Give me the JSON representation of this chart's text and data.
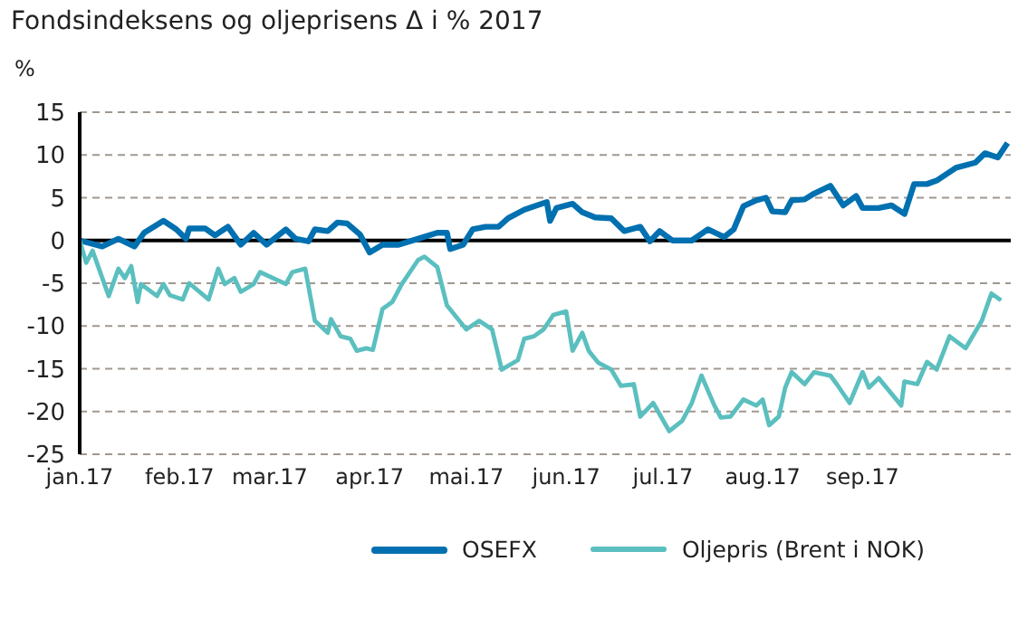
{
  "chart_data": {
    "type": "line",
    "title": "Fondsindeksens og oljeprisens Δ i % 2017",
    "ylabel": "%",
    "xlim": [
      "2017-01-01",
      "2017-10-17"
    ],
    "xticks": [
      {
        "value": "2017-01-01",
        "label": "jan.17"
      },
      {
        "value": "2017-02-01",
        "label": "feb.17"
      },
      {
        "value": "2017-03-01",
        "label": "mar.17"
      },
      {
        "value": "2017-04-01",
        "label": "apr.17"
      },
      {
        "value": "2017-05-01",
        "label": "mai.17"
      },
      {
        "value": "2017-06-01",
        "label": "jun.17"
      },
      {
        "value": "2017-07-01",
        "label": "jul.17"
      },
      {
        "value": "2017-08-01",
        "label": "aug.17"
      },
      {
        "value": "2017-09-01",
        "label": "sep.17"
      }
    ],
    "ylim": [
      -25,
      15
    ],
    "yticks": [
      -25,
      -20,
      -15,
      -10,
      -5,
      0,
      5,
      10,
      15
    ],
    "grid": "y",
    "legend": "bottom",
    "marker": "none",
    "line_style": "solid",
    "ref_lines": [
      {
        "axis": "y",
        "value": 0,
        "color": "#000000"
      }
    ],
    "series": [
      {
        "name": "OSEFX",
        "color": "#0070b0",
        "x": [
          "2017-01-01",
          "2017-01-08",
          "2017-01-13",
          "2017-01-18",
          "2017-01-21",
          "2017-01-27",
          "2017-01-31",
          "2017-02-03",
          "2017-02-04",
          "2017-02-09",
          "2017-02-12",
          "2017-02-16",
          "2017-02-20",
          "2017-02-24",
          "2017-02-28",
          "2017-03-06",
          "2017-03-09",
          "2017-03-13",
          "2017-03-15",
          "2017-03-19",
          "2017-03-22",
          "2017-03-25",
          "2017-03-29",
          "2017-04-01",
          "2017-04-05",
          "2017-04-10",
          "2017-04-16",
          "2017-04-22",
          "2017-04-25",
          "2017-04-26",
          "2017-04-30",
          "2017-05-03",
          "2017-05-07",
          "2017-05-11",
          "2017-05-14",
          "2017-05-19",
          "2017-05-26",
          "2017-05-27",
          "2017-05-29",
          "2017-06-03",
          "2017-06-06",
          "2017-06-10",
          "2017-06-15",
          "2017-06-19",
          "2017-06-24",
          "2017-06-27",
          "2017-06-30",
          "2017-07-04",
          "2017-07-10",
          "2017-07-15",
          "2017-07-20",
          "2017-07-23",
          "2017-07-26",
          "2017-07-30",
          "2017-08-02",
          "2017-08-04",
          "2017-08-08",
          "2017-08-10",
          "2017-08-14",
          "2017-08-17",
          "2017-08-22",
          "2017-08-26",
          "2017-08-30",
          "2017-09-01",
          "2017-09-06",
          "2017-09-10",
          "2017-09-14",
          "2017-09-17",
          "2017-09-21",
          "2017-09-24",
          "2017-09-30",
          "2017-10-06",
          "2017-10-09",
          "2017-10-13",
          "2017-10-16"
        ],
        "values": [
          0,
          -0.7,
          0.2,
          -0.7,
          0.9,
          2.3,
          1.3,
          0.2,
          1.4,
          1.4,
          0.6,
          1.6,
          -0.5,
          0.9,
          -0.5,
          1.3,
          0.2,
          -0.1,
          1.3,
          1.1,
          2.1,
          2.0,
          0.7,
          -1.4,
          -0.5,
          -0.5,
          0.2,
          0.9,
          0.9,
          -1.0,
          -0.5,
          1.3,
          1.6,
          1.6,
          2.6,
          3.6,
          4.5,
          2.3,
          3.8,
          4.3,
          3.3,
          2.7,
          2.6,
          1.1,
          1.6,
          -0.1,
          1.1,
          0,
          0,
          1.3,
          0.4,
          1.3,
          4.0,
          4.7,
          5.0,
          3.4,
          3.3,
          4.7,
          4.8,
          5.5,
          6.4,
          4.1,
          5.2,
          3.8,
          3.8,
          4.1,
          3.1,
          6.6,
          6.6,
          7.0,
          8.5,
          9.1,
          10.2,
          9.7,
          11.4
        ]
      },
      {
        "name": "Oljepris (Brent i NOK)",
        "color": "#5bbfbf",
        "x": [
          "2017-01-01",
          "2017-01-03",
          "2017-01-05",
          "2017-01-10",
          "2017-01-13",
          "2017-01-15",
          "2017-01-17",
          "2017-01-19",
          "2017-01-20",
          "2017-01-25",
          "2017-01-27",
          "2017-01-29",
          "2017-02-02",
          "2017-02-04",
          "2017-02-10",
          "2017-02-13",
          "2017-02-15",
          "2017-02-18",
          "2017-02-20",
          "2017-02-24",
          "2017-02-26",
          "2017-03-06",
          "2017-03-08",
          "2017-03-12",
          "2017-03-15",
          "2017-03-19",
          "2017-03-20",
          "2017-03-23",
          "2017-03-26",
          "2017-03-28",
          "2017-03-31",
          "2017-04-02",
          "2017-04-05",
          "2017-04-08",
          "2017-04-11",
          "2017-04-16",
          "2017-04-18",
          "2017-04-22",
          "2017-04-25",
          "2017-05-01",
          "2017-05-05",
          "2017-05-09",
          "2017-05-12",
          "2017-05-17",
          "2017-05-19",
          "2017-05-22",
          "2017-05-25",
          "2017-05-28",
          "2017-06-01",
          "2017-06-03",
          "2017-06-06",
          "2017-06-08",
          "2017-06-11",
          "2017-06-15",
          "2017-06-18",
          "2017-06-22",
          "2017-06-24",
          "2017-06-28",
          "2017-07-03",
          "2017-07-07",
          "2017-07-10",
          "2017-07-13",
          "2017-07-17",
          "2017-07-19",
          "2017-07-22",
          "2017-07-26",
          "2017-07-30",
          "2017-08-01",
          "2017-08-03",
          "2017-08-06",
          "2017-08-08",
          "2017-08-10",
          "2017-08-14",
          "2017-08-17",
          "2017-08-22",
          "2017-08-24",
          "2017-08-28",
          "2017-09-01",
          "2017-09-03",
          "2017-09-06",
          "2017-09-13",
          "2017-09-14",
          "2017-09-18",
          "2017-09-21",
          "2017-09-24",
          "2017-09-28",
          "2017-10-03",
          "2017-10-08",
          "2017-10-11",
          "2017-10-14"
        ],
        "values": [
          0,
          -2.6,
          -1.2,
          -6.5,
          -3.3,
          -4.4,
          -3.0,
          -7.2,
          -5.1,
          -6.5,
          -5.1,
          -6.4,
          -6.9,
          -5.0,
          -6.9,
          -3.3,
          -5.1,
          -4.4,
          -6.0,
          -5.1,
          -3.7,
          -5.1,
          -3.7,
          -3.3,
          -9.4,
          -10.8,
          -9.2,
          -11.2,
          -11.5,
          -12.9,
          -12.6,
          -12.8,
          -8.0,
          -7.2,
          -5.1,
          -2.3,
          -1.9,
          -3.1,
          -7.6,
          -10.4,
          -9.4,
          -10.4,
          -15.1,
          -14.0,
          -11.5,
          -11.2,
          -10.4,
          -8.7,
          -8.3,
          -12.9,
          -10.8,
          -12.9,
          -14.3,
          -15.1,
          -17.0,
          -16.8,
          -20.6,
          -19.0,
          -22.3,
          -21.1,
          -19.0,
          -15.8,
          -19.3,
          -20.7,
          -20.6,
          -18.6,
          -19.3,
          -18.6,
          -21.6,
          -20.6,
          -17.2,
          -15.4,
          -16.8,
          -15.4,
          -15.8,
          -16.8,
          -19.0,
          -15.4,
          -17.2,
          -16.1,
          -19.3,
          -16.5,
          -16.8,
          -14.2,
          -15.1,
          -11.2,
          -12.6,
          -9.4,
          -6.2,
          -7.0
        ]
      }
    ]
  }
}
